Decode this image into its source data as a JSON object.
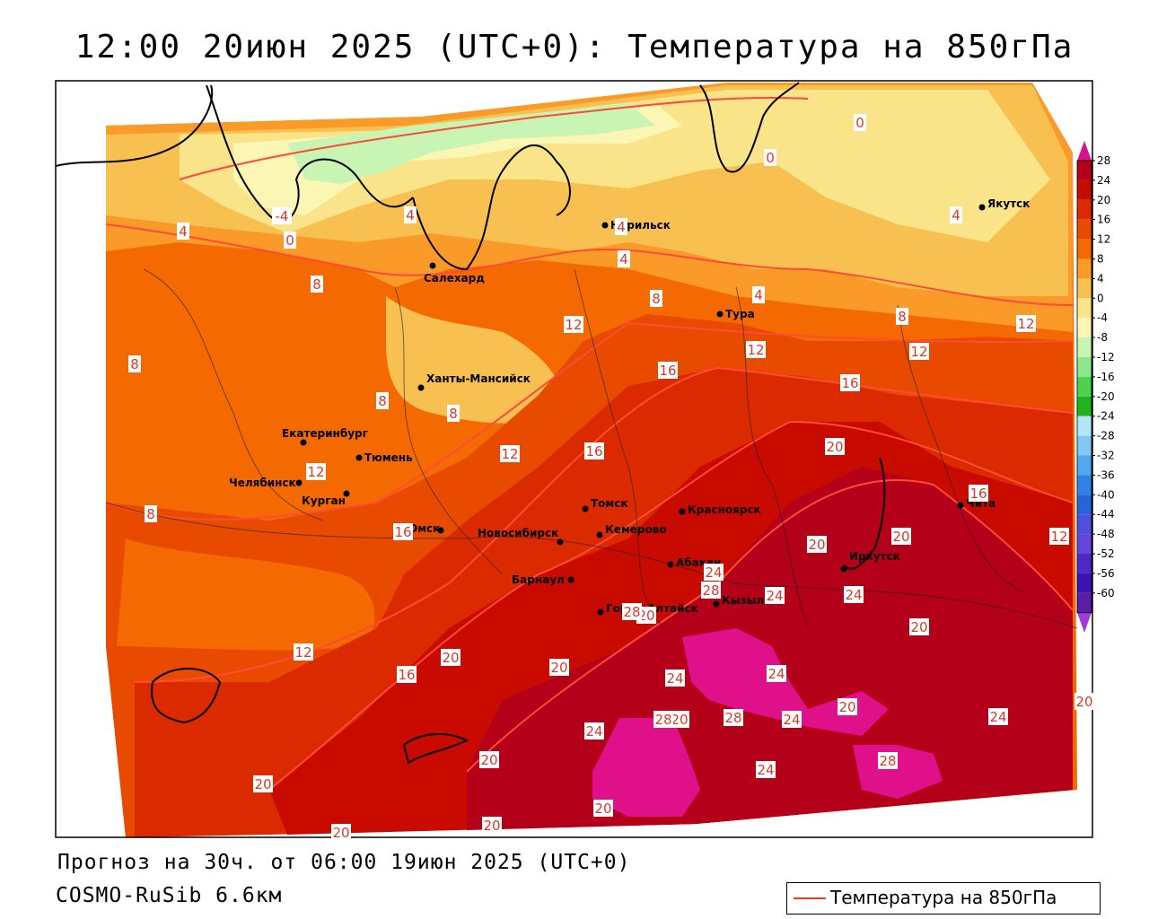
{
  "title": "12:00 20июн 2025 (UTC+0): Температура на 850гПа",
  "footer": {
    "forecast": "Прогноз на 30ч. от 06:00 19июн 2025 (UTC+0)",
    "model": "COSMO-RuSib 6.6км"
  },
  "legend": {
    "series_label": "Температура на 850гПа",
    "line_color": "#e83a2a"
  },
  "colorbar": {
    "levels": [
      {
        "label": "28",
        "color": "#b40018"
      },
      {
        "label": "24",
        "color": "#c80a00"
      },
      {
        "label": "20",
        "color": "#dc2a00"
      },
      {
        "label": "16",
        "color": "#e84a00"
      },
      {
        "label": "12",
        "color": "#f46a00"
      },
      {
        "label": "8",
        "color": "#fa9a28"
      },
      {
        "label": "4",
        "color": "#f8c050"
      },
      {
        "label": "0",
        "color": "#f9e48a"
      },
      {
        "label": "-4",
        "color": "#fbf6b4"
      },
      {
        "label": "-8",
        "color": "#c8f4b4"
      },
      {
        "label": "-12",
        "color": "#8ce68c"
      },
      {
        "label": "-16",
        "color": "#4cd24c"
      },
      {
        "label": "-20",
        "color": "#1eb41e"
      },
      {
        "label": "-24",
        "color": "#b4e6fa"
      },
      {
        "label": "-28",
        "color": "#82c8f4"
      },
      {
        "label": "-32",
        "color": "#50a8ee"
      },
      {
        "label": "-36",
        "color": "#3282e6"
      },
      {
        "label": "-40",
        "color": "#2864d8"
      },
      {
        "label": "-44",
        "color": "#5050dc"
      },
      {
        "label": "-48",
        "color": "#6446dc"
      },
      {
        "label": "-52",
        "color": "#5028c8"
      },
      {
        "label": "-56",
        "color": "#3c14b4"
      },
      {
        "label": "-60",
        "color": "#5a1eaa"
      }
    ],
    "top_arrow_color": "#d2148c",
    "bottom_arrow_color": "#a03cdc"
  },
  "cities": [
    {
      "name": "Норильск"
    },
    {
      "name": "Якутск"
    },
    {
      "name": "Салехард"
    },
    {
      "name": "Тура"
    },
    {
      "name": "Ханты-Мансийск"
    },
    {
      "name": "Екатеринбург"
    },
    {
      "name": "Тюмень"
    },
    {
      "name": "Челябинск"
    },
    {
      "name": "Курган"
    },
    {
      "name": "Омск"
    },
    {
      "name": "Томск"
    },
    {
      "name": "Новосибирск"
    },
    {
      "name": "Кемерово"
    },
    {
      "name": "Красноярск"
    },
    {
      "name": "Барнаул"
    },
    {
      "name": "Абакан"
    },
    {
      "name": "Горно-Алтайск"
    },
    {
      "name": "Кызыл"
    },
    {
      "name": "Иркутск"
    },
    {
      "name": "Чита"
    }
  ],
  "contour_labels": [
    "0",
    "0",
    "-4",
    "0",
    "4",
    "4",
    "4",
    "4",
    "4",
    "4",
    "8",
    "8",
    "8",
    "8",
    "8",
    "8",
    "8",
    "12",
    "12",
    "12",
    "12",
    "12",
    "12",
    "12",
    "12",
    "16",
    "16",
    "16",
    "16",
    "16",
    "16",
    "20",
    "20",
    "20",
    "20",
    "20",
    "20",
    "20",
    "20",
    "20",
    "20",
    "20",
    "20",
    "20",
    "20",
    "20",
    "24",
    "24",
    "24",
    "24",
    "24",
    "24",
    "24",
    "24",
    "24",
    "28",
    "28",
    "28",
    "28",
    "28"
  ]
}
